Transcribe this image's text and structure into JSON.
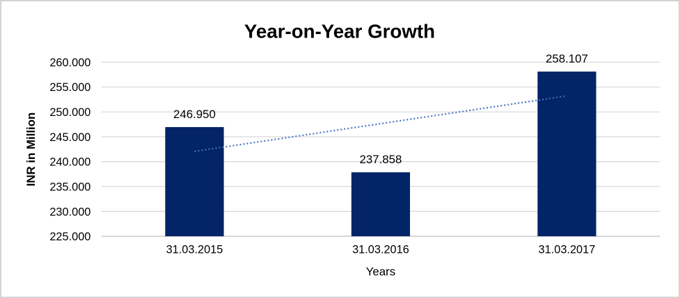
{
  "window": {
    "background": "#ffffff",
    "border_color": "#d3d3d3"
  },
  "chart_data": {
    "type": "bar",
    "title": "Year-on-Year Growth",
    "xlabel": "Years",
    "ylabel": "INR in Million",
    "categories": [
      "31.03.2015",
      "31.03.2016",
      "31.03.2017"
    ],
    "values": [
      246.95,
      237.858,
      258.107
    ],
    "value_labels": [
      "246.950",
      "237.858",
      "258.107"
    ],
    "ylim": [
      225,
      260
    ],
    "y_tick_step": 5,
    "y_tick_labels": [
      "225.000",
      "230.000",
      "235.000",
      "240.000",
      "245.000",
      "250.000",
      "255.000",
      "260.000"
    ],
    "grid": true,
    "legend_position": "none",
    "bar_color": "#032466",
    "gridline_color": "#d9d9d9",
    "axis_line_color": "#bfbfbf",
    "text_color": "#000000",
    "trendline": {
      "fit": "linear",
      "style": "dotted",
      "color": "#4472c4"
    }
  }
}
